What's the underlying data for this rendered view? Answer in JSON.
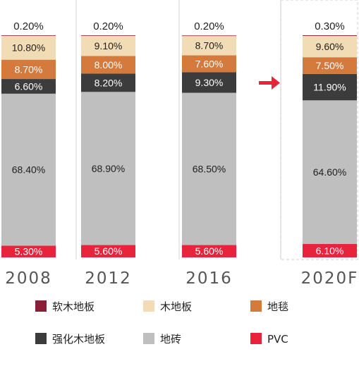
{
  "chart_data": {
    "type": "bar",
    "stacked": true,
    "normalized_percent": true,
    "categories": [
      "2008",
      "2012",
      "2016",
      "2020F"
    ],
    "series": [
      {
        "name": "PVC",
        "color": "#e8233c",
        "values": [
          5.3,
          5.6,
          5.6,
          6.1
        ],
        "labels": [
          "5.30%",
          "5.60%",
          "5.60%",
          "6.10%"
        ],
        "label_color": "#ffffff"
      },
      {
        "name": "地砖",
        "color": "#bfbfbf",
        "values": [
          68.4,
          68.9,
          68.5,
          64.6
        ],
        "labels": [
          "68.40%",
          "68.90%",
          "68.50%",
          "64.60%"
        ],
        "label_color": "#222222"
      },
      {
        "name": "强化木地板",
        "color": "#3c3c3c",
        "values": [
          6.6,
          8.2,
          9.3,
          11.9
        ],
        "labels": [
          "6.60%",
          "8.20%",
          "9.30%",
          "11.90%"
        ],
        "label_color": "#ffffff"
      },
      {
        "name": "地毯",
        "color": "#d47a3c",
        "values": [
          8.7,
          8.0,
          7.6,
          7.5
        ],
        "labels": [
          "8.70%",
          "8.00%",
          "7.60%",
          "7.50%"
        ],
        "label_color": "#ffffff"
      },
      {
        "name": "木地板",
        "color": "#f1dcb5",
        "values": [
          10.8,
          9.1,
          8.7,
          9.6
        ],
        "labels": [
          "10.80%",
          "9.10%",
          "8.70%",
          "9.60%"
        ],
        "label_color": "#222222"
      },
      {
        "name": "软木地板",
        "color": "#8a1f3a",
        "values": [
          0.2,
          0.2,
          0.2,
          0.3
        ],
        "labels": [
          "0.20%",
          "0.20%",
          "0.20%",
          "0.30%"
        ],
        "label_color": "#222222"
      }
    ],
    "legend_order": [
      "软木地板",
      "木地板",
      "地毯",
      "强化木地板",
      "地砖",
      "PVC"
    ],
    "legend_position": "bottom",
    "annotations": [
      {
        "type": "arrow",
        "from_category": "2016",
        "to_category": "2020F",
        "color": "#e8233c"
      }
    ],
    "title": "",
    "xlabel": "",
    "ylabel": "",
    "ylim": [
      0,
      100
    ],
    "grid": false
  }
}
